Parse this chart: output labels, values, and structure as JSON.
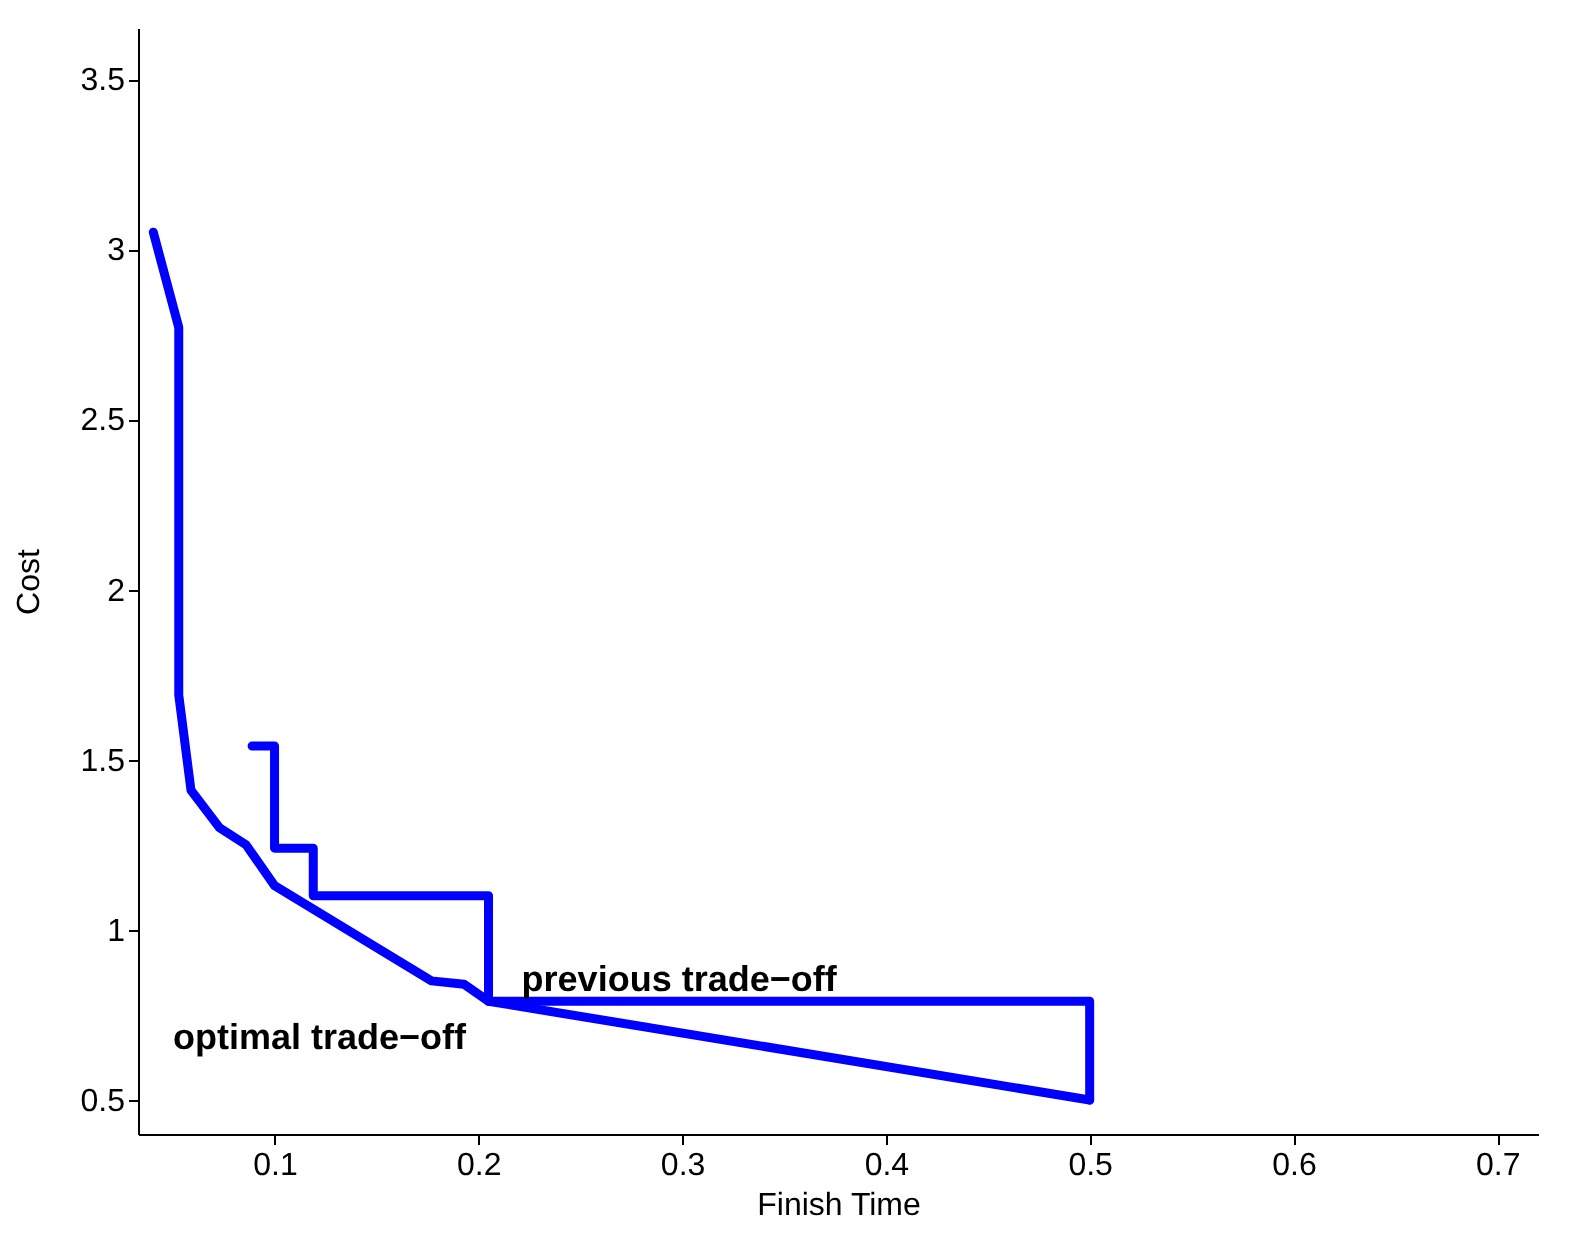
{
  "chart_data": {
    "type": "line",
    "xlabel": "Finish Time",
    "ylabel": "Cost",
    "xlim": [
      0.033,
      0.72
    ],
    "ylim": [
      0.4,
      3.65
    ],
    "xticks": [
      0.1,
      0.2,
      0.3,
      0.4,
      0.5,
      0.6,
      0.7
    ],
    "yticks": [
      0.5,
      1,
      1.5,
      2,
      2.5,
      3,
      3.5
    ],
    "grid": false,
    "marker": "none",
    "line_style": "solid",
    "series": [
      {
        "color": "#0000ff",
        "x": [
          0.0405,
          0.053,
          0.053,
          0.059,
          0.073,
          0.086,
          0.1,
          0.177,
          0.193,
          0.205,
          0.5
        ],
        "values": [
          3.05,
          2.77,
          1.69,
          1.41,
          1.3,
          1.25,
          1.13,
          0.85,
          0.84,
          0.79,
          0.5
        ]
      },
      {
        "color": "#0000ff",
        "x": [
          0.089,
          0.1,
          0.1,
          0.119,
          0.119,
          0.205,
          0.205,
          0.5,
          0.5
        ],
        "values": [
          1.54,
          1.54,
          1.24,
          1.24,
          1.1,
          1.1,
          0.79,
          0.79,
          0.5
        ]
      }
    ],
    "annotations": [
      "previous trade−off",
      "optimal trade−off"
    ]
  }
}
